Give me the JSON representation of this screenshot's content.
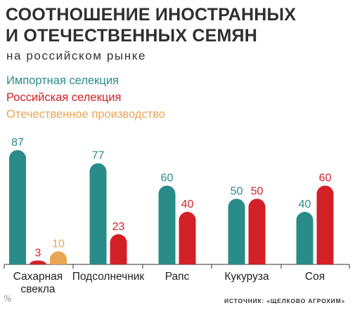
{
  "title_line1": "СООТНОШЕНИЕ ИНОСТРАННЫХ",
  "title_line2": "И ОТЕЧЕСТВЕННЫХ СЕМЯН",
  "subtitle": "на российском рынке",
  "unit": "%",
  "source": "ИСТОЧНИК: «ЩЕЛКОВО АГРОХИМ»",
  "colors": {
    "import": "#2a8c88",
    "russian": "#d32027",
    "domestic": "#e9a652"
  },
  "chart_data": {
    "type": "bar",
    "categories": [
      [
        "Сахарная",
        "свекла"
      ],
      [
        "Подсолнечник"
      ],
      [
        "Рапс"
      ],
      [
        "Кукуруза"
      ],
      [
        "Соя"
      ]
    ],
    "series": [
      {
        "name": "Импортная селекция",
        "color": "#2a8c88",
        "values": [
          87,
          77,
          60,
          50,
          40
        ]
      },
      {
        "name": "Российская селекция",
        "color": "#d32027",
        "values": [
          3,
          23,
          40,
          50,
          60
        ]
      },
      {
        "name": "Отечественное производство",
        "color": "#e9a652",
        "values": [
          10,
          null,
          null,
          null,
          null
        ]
      }
    ],
    "ylim": [
      0,
      87
    ],
    "grid": false,
    "legend": "top-left"
  }
}
